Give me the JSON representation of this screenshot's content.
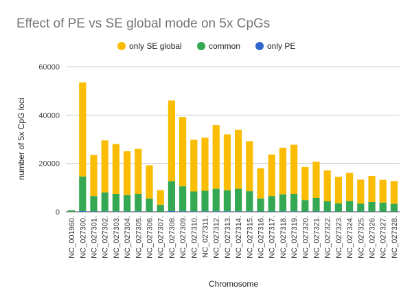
{
  "chart_data": {
    "type": "bar",
    "stacked": true,
    "title": "Effect of PE vs SE global mode on 5x CpGs",
    "xlabel": "Chromosome",
    "ylabel": "number of 5x CpG loci",
    "ylim": [
      0,
      60000
    ],
    "yticks": [
      "0",
      "20000",
      "40000",
      "60000"
    ],
    "grid": true,
    "legend_position": "top",
    "categories": [
      "NC_001960.",
      "NC_027300.",
      "NC_027301.",
      "NC_027302.",
      "NC_027303.",
      "NC_027304.",
      "NC_027305.",
      "NC_027306.",
      "NC_027307.",
      "NC_027308.",
      "NC_027309.",
      "NC_027310.",
      "NC_027311.",
      "NC_027312.",
      "NC_027313.",
      "NC_027314.",
      "NC_027315.",
      "NC_027316.",
      "NC_027317.",
      "NC_027318.",
      "NC_027319.",
      "NC_027320.",
      "NC_027321.",
      "NC_027322.",
      "NC_027323.",
      "NC_027324.",
      "NC_027325.",
      "NC_027326.",
      "NC_027327.",
      "NC_027328."
    ],
    "series": [
      {
        "name": "only PE",
        "color": "#3366cc",
        "values": [
          40,
          300,
          140,
          180,
          170,
          160,
          170,
          120,
          60,
          300,
          250,
          180,
          190,
          220,
          210,
          220,
          180,
          120,
          150,
          170,
          180,
          110,
          130,
          100,
          80,
          100,
          80,
          90,
          80,
          70
        ]
      },
      {
        "name": "common",
        "color": "#34a853",
        "values": [
          560,
          14300,
          6360,
          7820,
          7230,
          6740,
          7230,
          5380,
          2840,
          12400,
          10250,
          8220,
          8510,
          9280,
          8690,
          9280,
          8320,
          5380,
          6350,
          7030,
          7220,
          4690,
          5570,
          4300,
          3420,
          4400,
          3320,
          3910,
          3720,
          3230
        ]
      },
      {
        "name": "only SE global",
        "color": "#fbbc04",
        "values": [
          0,
          38900,
          17000,
          21500,
          20600,
          18100,
          18600,
          13700,
          6100,
          33300,
          28700,
          21400,
          21900,
          26300,
          23100,
          24400,
          20700,
          12500,
          17200,
          19300,
          20300,
          13700,
          15000,
          12700,
          11000,
          11600,
          9900,
          10800,
          9400,
          9400
        ]
      }
    ],
    "legend_order": [
      "only SE global",
      "common",
      "only PE"
    ]
  }
}
